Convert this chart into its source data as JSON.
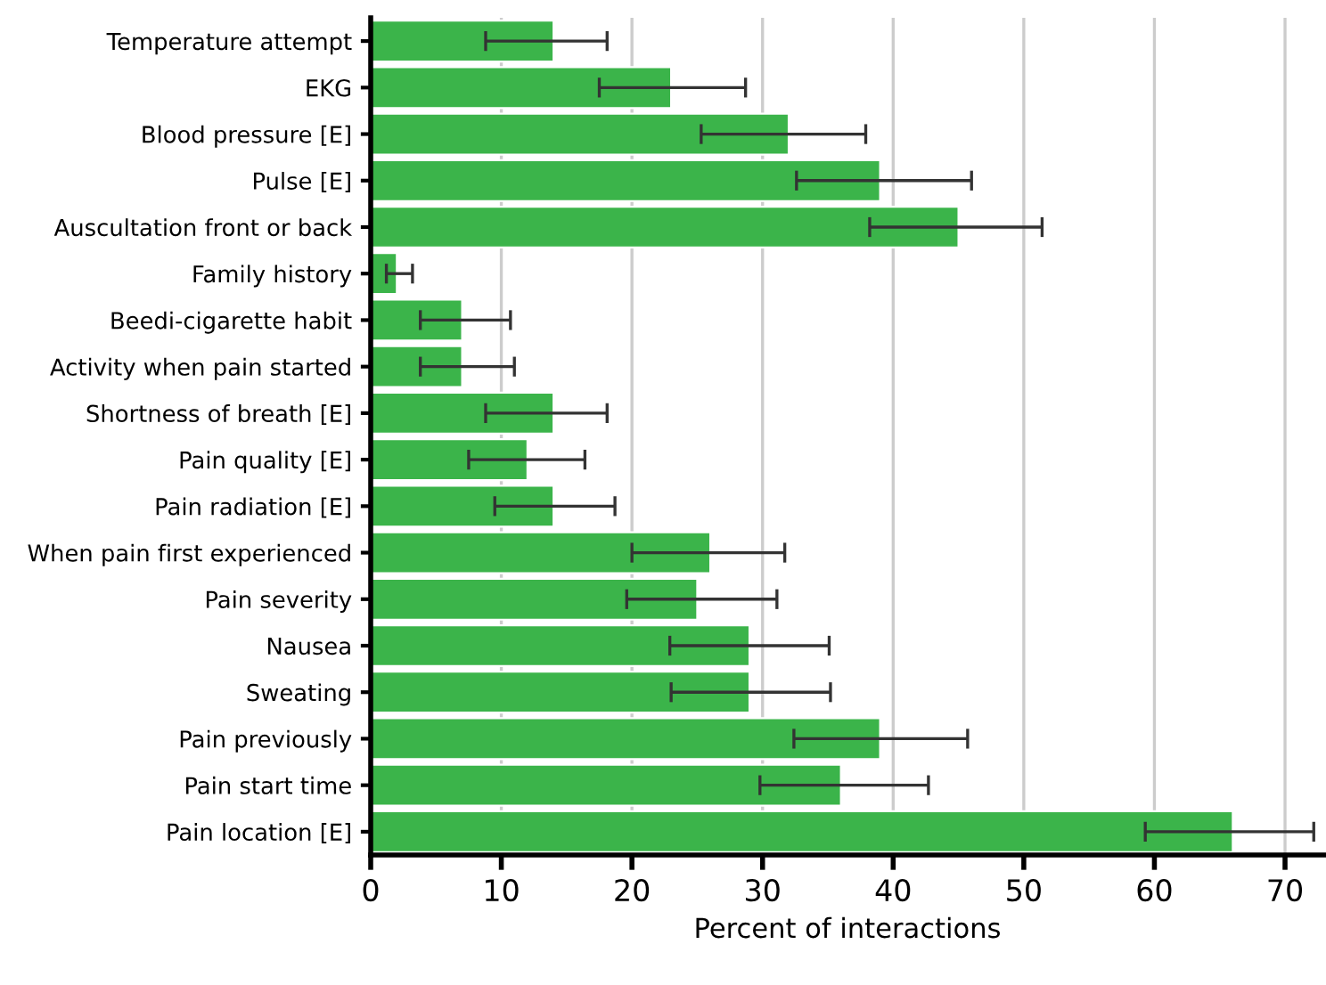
{
  "chart_data": {
    "type": "bar",
    "orientation": "horizontal",
    "xlabel": "Percent of interactions",
    "categories": [
      "Temperature attempt",
      "EKG",
      "Blood pressure [E]",
      "Pulse [E]",
      "Auscultation front or back",
      "Family history",
      "Beedi-cigarette habit",
      "Activity when pain started",
      "Shortness of breath [E]",
      "Pain quality [E]",
      "Pain radiation [E]",
      "When pain first experienced",
      "Pain severity",
      "Nausea",
      "Sweating",
      "Pain previously",
      "Pain start time",
      "Pain location [E]"
    ],
    "values": [
      14,
      23,
      32,
      39,
      45,
      2,
      7,
      7,
      14,
      12,
      14,
      26,
      25,
      29,
      29,
      39,
      36,
      66
    ],
    "errors": [
      [
        8.8,
        18.1
      ],
      [
        17.5,
        28.7
      ],
      [
        25.3,
        37.9
      ],
      [
        32.6,
        46
      ],
      [
        38.2,
        51.4
      ],
      [
        1.2,
        3.2
      ],
      [
        3.8,
        10.7
      ],
      [
        3.8,
        11
      ],
      [
        8.8,
        18.1
      ],
      [
        7.5,
        16.4
      ],
      [
        9.5,
        18.7
      ],
      [
        20,
        31.7
      ],
      [
        19.6,
        31.1
      ],
      [
        22.9,
        35.1
      ],
      [
        23,
        35.2
      ],
      [
        32.4,
        45.7
      ],
      [
        29.8,
        42.7
      ],
      [
        59.3,
        72.2
      ]
    ],
    "color": "#3bb44a",
    "xlim": [
      0,
      73
    ],
    "xticks": [
      0,
      10,
      20,
      30,
      40,
      50,
      60,
      70
    ],
    "grid": "x"
  }
}
